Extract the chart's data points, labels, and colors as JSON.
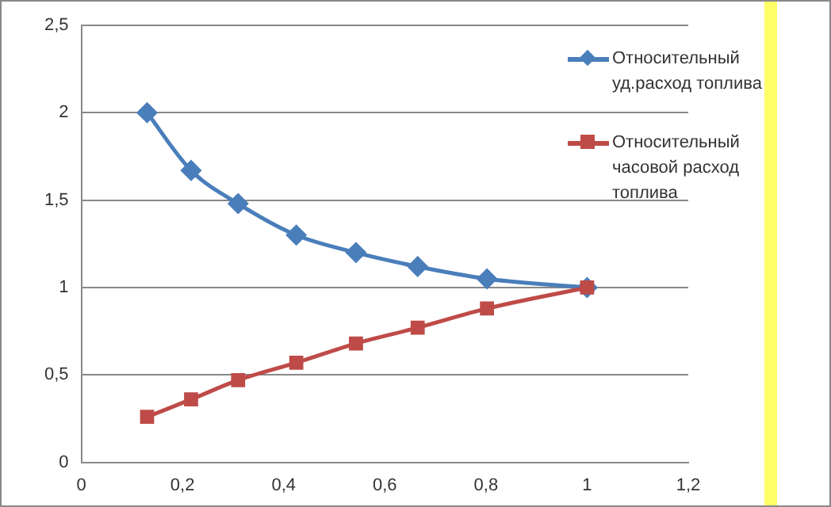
{
  "chart_data": {
    "type": "line",
    "x": [
      0.13,
      0.217,
      0.31,
      0.425,
      0.543,
      0.665,
      0.802,
      1.0
    ],
    "series": [
      {
        "name": "Относительный уд.расход топлива",
        "color": "#4a7ebb",
        "marker": "diamond",
        "values": [
          2.0,
          1.67,
          1.48,
          1.3,
          1.2,
          1.12,
          1.05,
          1.0
        ]
      },
      {
        "name": "Относительный часовой расход топлива",
        "color": "#be4b48",
        "marker": "square",
        "values": [
          0.26,
          0.36,
          0.47,
          0.57,
          0.68,
          0.77,
          0.88,
          1.0
        ]
      }
    ],
    "xlim": [
      0,
      1.2
    ],
    "xticks": [
      0,
      {
        "value": 0.2,
        "label": "0,2"
      },
      {
        "value": 0.4,
        "label": "0,4"
      },
      {
        "value": 0.6,
        "label": "0,6"
      },
      {
        "value": 0.8,
        "label": "0,8"
      },
      1,
      {
        "value": 1.2,
        "label": "1,2"
      }
    ],
    "ylim": [
      0,
      2.5
    ],
    "yticks": [
      0,
      {
        "value": 0.5,
        "label": "0,5"
      },
      1,
      {
        "value": 1.5,
        "label": "1,5"
      },
      2,
      {
        "value": 2.5,
        "label": "2,5"
      }
    ],
    "grid": "y",
    "legend": "right"
  }
}
